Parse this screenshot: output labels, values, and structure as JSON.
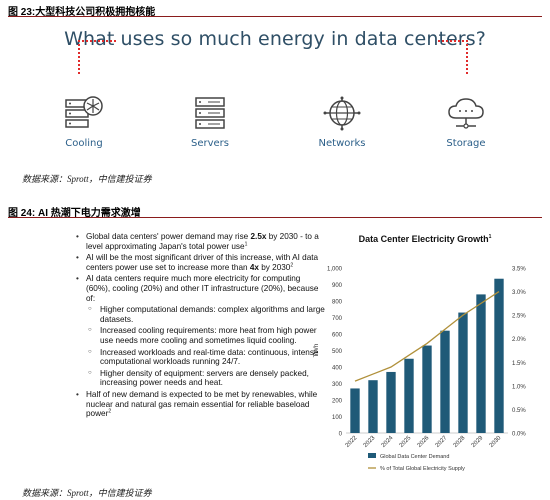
{
  "figure23": {
    "title": "图 23:大型科技公司积极拥抱核能",
    "headline": "What uses so much energy in data centers?",
    "items": [
      {
        "label": "Cooling",
        "icon": "server-fan-icon"
      },
      {
        "label": "Servers",
        "icon": "server-rack-icon"
      },
      {
        "label": "Networks",
        "icon": "globe-network-icon"
      },
      {
        "label": "Storage",
        "icon": "cloud-storage-icon"
      }
    ],
    "source": "数据来源：Sprott，中信建投证券"
  },
  "figure24": {
    "title": "图 24: AI 热潮下电力需求激增",
    "bullets": {
      "b1": {
        "pre": "Global data centers' power demand may rise ",
        "bold": "2.5x",
        "post": " by 2030 - to a level approximating Japan's total power use",
        "sup": "1"
      },
      "b2": {
        "pre": "AI will be the most significant driver of this increase, with AI data centers power use set to increase more than ",
        "bold": "4x",
        "post": " by 2030",
        "sup": "2"
      },
      "b3": "AI data centers require much more electricity for computing (60%), cooling (20%) and other IT infrastructure (20%), because of:",
      "s1": "Higher computational demands: complex algorithms and large datasets.",
      "s2": "Increased cooling requirements: more heat from high power use needs more cooling and sometimes liquid cooling.",
      "s3": "Increased workloads and real-time data: continuous, intense computational workloads running 24/7.",
      "s4": "Higher density of equipment: servers are densely packed, increasing power needs and heat.",
      "b4": {
        "text": "Half of new demand is expected to be met by renewables, while nuclear and natural gas remain essential for reliable baseload power",
        "sup": "2"
      }
    },
    "source": "数据来源：Sprott，中信建投证券"
  },
  "chart_data": {
    "type": "bar",
    "title": "Data Center Electricity Growth",
    "title_sup": "1",
    "categories": [
      "2022",
      "2023",
      "2024",
      "2025",
      "2026",
      "2027",
      "2028",
      "2029",
      "2030"
    ],
    "series": [
      {
        "name": "Global Data Center Demand",
        "type": "bar",
        "axis": "left",
        "values": [
          270,
          320,
          370,
          450,
          530,
          620,
          730,
          840,
          935
        ]
      },
      {
        "name": "% of Total Global Electricity Supply",
        "type": "line",
        "axis": "right",
        "values": [
          1.1,
          1.25,
          1.4,
          1.65,
          1.9,
          2.2,
          2.5,
          2.75,
          3.0
        ]
      }
    ],
    "ylabel": "TWh",
    "ylim": [
      0,
      1000
    ],
    "yticks": [
      0,
      100,
      200,
      300,
      400,
      500,
      600,
      700,
      800,
      900,
      "1,000"
    ],
    "y2lim": [
      0,
      3.5
    ],
    "y2ticks": [
      "0.0%",
      "0.5%",
      "1.0%",
      "1.5%",
      "2.0%",
      "2.5%",
      "3.0%",
      "3.5%"
    ],
    "grid": false,
    "legend": "bottom",
    "colors": {
      "bar": "#1f5a78",
      "line": "#b0903a"
    }
  }
}
